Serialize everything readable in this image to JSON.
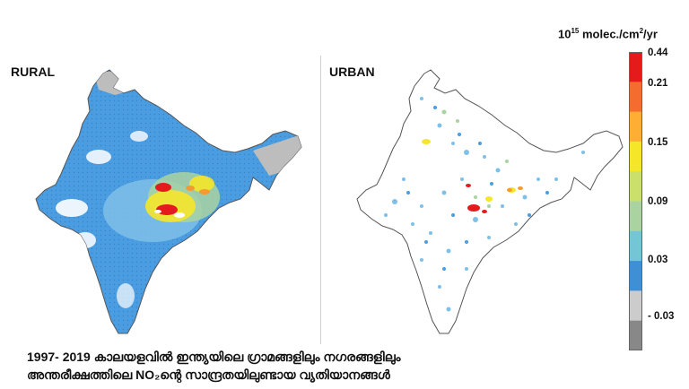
{
  "panels": {
    "rural_label": "RURAL",
    "urban_label": "URBAN"
  },
  "colorbar": {
    "unit_prefix": "10",
    "unit_exp1": "15",
    "unit_mid": " molec./cm",
    "unit_exp2": "2",
    "unit_suffix": "/yr",
    "ticks": [
      "0.44",
      "0.21",
      "0.15",
      "0.09",
      "0.03",
      "- 0.03"
    ],
    "colors": [
      "#e41a1c",
      "#f46d2e",
      "#fdae33",
      "#f5e62a",
      "#cbe06a",
      "#a9d4a0",
      "#74c6d6",
      "#3f8fd6",
      "#cccccc",
      "#888888"
    ]
  },
  "caption": {
    "line1": "1997- 2019 കാലയളവിൽ ഇന്ത്യയിലെ ഗ്രാമങ്ങളിലും നഗരങ്ങളിലും",
    "line2": "അന്തരീക്ഷത്തിലെ NO₂ന്റെ സാന്ദ്രതയിലുണ്ടായ വ്യതിയാനങ്ങൾ"
  },
  "map_colors": {
    "rural_base": "#4a9de0",
    "rural_light": "#7fc0e8",
    "rural_green": "#a9d4a0",
    "rural_yellow": "#f5e62a",
    "rural_orange": "#f59a2e",
    "rural_red": "#e41a1c",
    "no_data": "#bdbdbd",
    "outline": "#555555"
  }
}
